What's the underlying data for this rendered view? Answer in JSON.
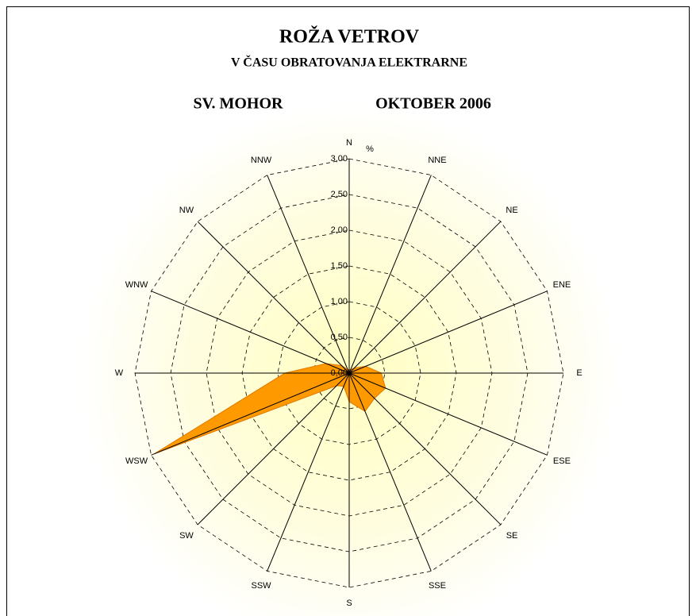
{
  "chart_data": {
    "type": "radar",
    "title": "ROŽA VETROV",
    "subtitle": "V ČASU OBRATOVANJA ELEKTRARNE",
    "location": "SV. MOHOR",
    "period": "OKTOBER 2006",
    "unit_label": "%",
    "categories": [
      "N",
      "NNE",
      "NE",
      "ENE",
      "E",
      "ESE",
      "SE",
      "SSE",
      "S",
      "SSW",
      "SW",
      "WSW",
      "W",
      "WNW",
      "NW",
      "NNW"
    ],
    "series": [
      {
        "name": "OKTOBER 2006",
        "color": "#ff9900",
        "values": [
          0.05,
          0.05,
          0.1,
          0.25,
          0.45,
          0.55,
          0.5,
          0.58,
          0.4,
          0.2,
          0.25,
          2.95,
          0.9,
          0.35,
          0.15,
          0.05
        ]
      }
    ],
    "ylim": [
      0,
      3
    ],
    "yticks": [
      {
        "value": 0,
        "label": "0,00"
      },
      {
        "value": 0.5,
        "label": "0,50"
      },
      {
        "value": 1,
        "label": "1,00"
      },
      {
        "value": 1.5,
        "label": "1,50"
      },
      {
        "value": 2,
        "label": "2,00"
      },
      {
        "value": 2.5,
        "label": "2,50"
      },
      {
        "value": 3,
        "label": "3,00"
      }
    ],
    "grid": true
  }
}
